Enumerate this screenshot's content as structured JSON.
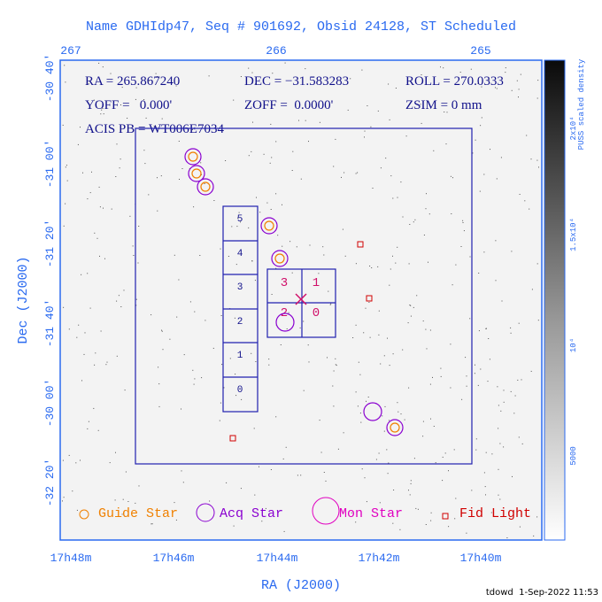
{
  "title": "Name GDHIdp47, Seq # 901692, Obsid 24128, ST Scheduled",
  "header": {
    "ra": "RA = 265.867240",
    "dec": "DEC = −31.583283",
    "roll": "ROLL = 270.0333",
    "yoff": "YOFF =   0.000'",
    "zoff": "ZOFF =  0.0000'",
    "zsim": "ZSIM = 0 mm",
    "acis_pb": "ACIS PB = WT006E7034"
  },
  "axes": {
    "x_label": "RA (J2000)",
    "y_label": "Dec (J2000)",
    "top_ticks": [
      "267",
      "266",
      "265"
    ],
    "bottom_ticks": [
      "17h48m",
      "17h46m",
      "17h44m",
      "17h42m",
      "17h40m"
    ],
    "left_ticks": [
      "-30 40'",
      "-31 00'",
      "-31 20'",
      "-31 40'",
      "-30 00'",
      "-32 20'"
    ],
    "colorbar_ticks": [
      "2x10⁴",
      "1.5x10⁴",
      "10⁴",
      "5000"
    ],
    "colorbar_label": "PUSS scaled density"
  },
  "ccd_labels": {
    "s_chips": [
      "5",
      "4",
      "3",
      "2",
      "1",
      "0"
    ],
    "i_chips": [
      "3",
      "1",
      "2",
      "0"
    ]
  },
  "legend": [
    "Guide Star",
    "Acq Star",
    "Mon Star",
    "Fid Light"
  ],
  "footer": "tdowd  1-Sep-2022 11:53"
}
